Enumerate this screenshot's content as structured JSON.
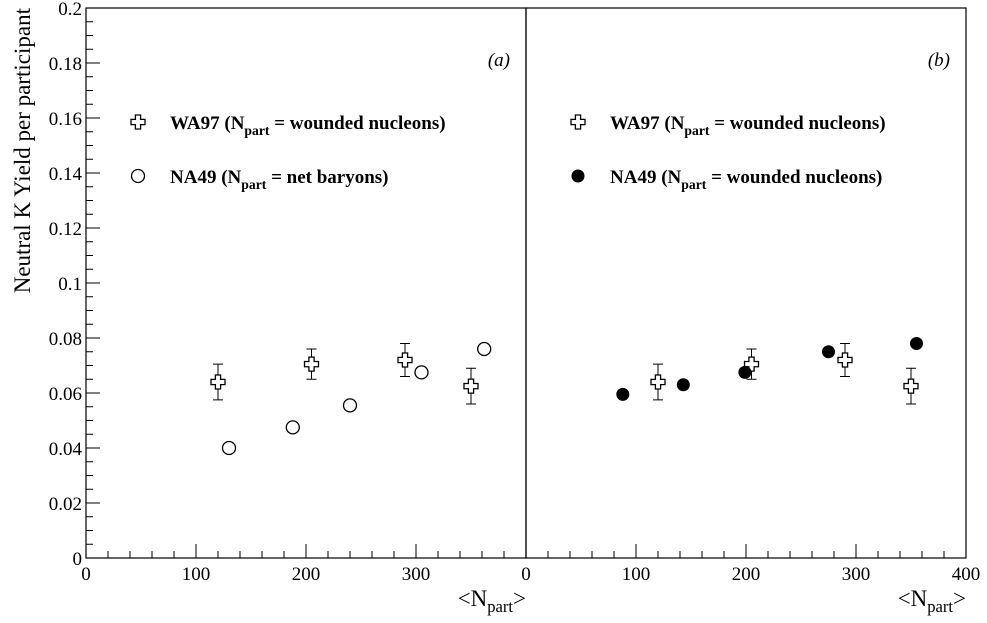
{
  "chart_data": {
    "type": "scatter",
    "ylabel": "Neutral K Yield per participant",
    "ylim": [
      0,
      0.2
    ],
    "yticks": [
      "0",
      "0.02",
      "0.04",
      "0.06",
      "0.08",
      "0.1",
      "0.12",
      "0.14",
      "0.16",
      "0.18",
      "0.2"
    ],
    "panels": [
      {
        "label": "(a)",
        "xlim": [
          0,
          400
        ],
        "xticks": [
          "0",
          "100",
          "200",
          "300"
        ],
        "xlabel": {
          "main": "<N",
          "sub": "part",
          "tail": ">"
        },
        "series": [
          {
            "name_main": "WA97 (N",
            "name_sub": "part",
            "name_tail": " = wounded nucleons)",
            "marker": "open-cross",
            "points": [
              {
                "x": 120,
                "y": 0.064,
                "err": 0.0065
              },
              {
                "x": 205,
                "y": 0.0705,
                "err": 0.0055
              },
              {
                "x": 290,
                "y": 0.072,
                "err": 0.006
              },
              {
                "x": 350,
                "y": 0.0625,
                "err": 0.0065
              }
            ]
          },
          {
            "name_main": "NA49 (N",
            "name_sub": "part",
            "name_tail": " = net baryons)",
            "marker": "open-circle",
            "points": [
              {
                "x": 130,
                "y": 0.04
              },
              {
                "x": 188,
                "y": 0.0475
              },
              {
                "x": 240,
                "y": 0.0555
              },
              {
                "x": 305,
                "y": 0.0675
              },
              {
                "x": 362,
                "y": 0.076
              }
            ]
          }
        ]
      },
      {
        "label": "(b)",
        "xlim": [
          0,
          400
        ],
        "xticks": [
          "0",
          "100",
          "200",
          "300",
          "400"
        ],
        "xlabel": {
          "main": "<N",
          "sub": "part",
          "tail": ">"
        },
        "series": [
          {
            "name_main": "WA97 (N",
            "name_sub": "part",
            "name_tail": " = wounded nucleons)",
            "marker": "open-cross",
            "points": [
              {
                "x": 120,
                "y": 0.064,
                "err": 0.0065
              },
              {
                "x": 205,
                "y": 0.0705,
                "err": 0.0055
              },
              {
                "x": 290,
                "y": 0.072,
                "err": 0.006
              },
              {
                "x": 350,
                "y": 0.0625,
                "err": 0.0065
              }
            ]
          },
          {
            "name_main": "NA49 (N",
            "name_sub": "part",
            "name_tail": " = wounded nucleons)",
            "marker": "filled-circle",
            "points": [
              {
                "x": 88,
                "y": 0.0595
              },
              {
                "x": 143,
                "y": 0.063
              },
              {
                "x": 199,
                "y": 0.0675
              },
              {
                "x": 275,
                "y": 0.075
              },
              {
                "x": 355,
                "y": 0.078
              }
            ]
          }
        ]
      }
    ]
  }
}
